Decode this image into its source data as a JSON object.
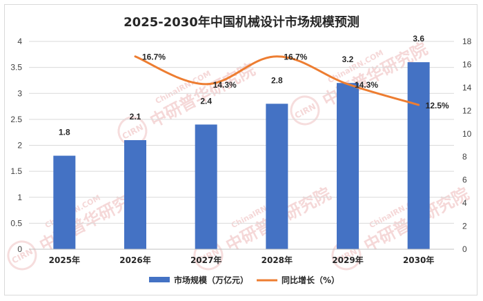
{
  "chart_data": {
    "type": "bar",
    "title": "2025-2030年中国机械设计市场规模预测",
    "categories": [
      "2025年",
      "2026年",
      "2027年",
      "2028年",
      "2029年",
      "2030年"
    ],
    "series": [
      {
        "name": "市场规模（万亿元）",
        "type": "bar",
        "axis": "left",
        "color": "#4472c4",
        "values": [
          1.8,
          2.1,
          2.4,
          2.8,
          3.2,
          3.6
        ],
        "labels": [
          "1.8",
          "2.1",
          "2.4",
          "2.8",
          "3.2",
          "3.6"
        ]
      },
      {
        "name": "同比增长（%）",
        "type": "line",
        "axis": "right",
        "color": "#ed7d31",
        "values": [
          null,
          16.7,
          14.3,
          16.7,
          14.3,
          12.5
        ],
        "labels": [
          "",
          "16.7%",
          "14.3%",
          "16.7%",
          "14.3%",
          "12.5%"
        ]
      }
    ],
    "y_left": {
      "min": 0,
      "max": 4,
      "step": 0.5,
      "tick_labels": [
        "0",
        "0.5",
        "1",
        "1.5",
        "2",
        "2.5",
        "3",
        "3.5",
        "4"
      ]
    },
    "y_right": {
      "min": 0,
      "max": 18,
      "step": 2,
      "tick_labels": [
        "0",
        "2",
        "4",
        "6",
        "8",
        "10",
        "12",
        "14",
        "16",
        "18"
      ]
    },
    "grid": true,
    "legend_position": "bottom"
  },
  "watermark": {
    "text": "中研普华研究院",
    "url_text": "ChinaIRN.COM",
    "logo_text": "CIRN"
  }
}
